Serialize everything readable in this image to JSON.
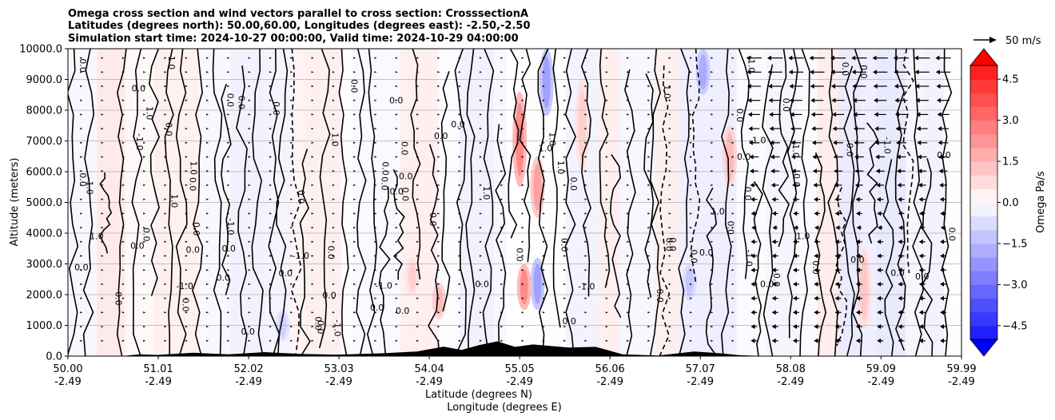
{
  "chart_data": {
    "type": "heatmap",
    "title_lines": [
      "Omega cross section and wind vectors parallel to cross section: CrosssectionA",
      "Latitudes (degrees north): 50.00,60.00, Longitudes (degrees east): -2.50,-2.50",
      "Simulation start time: 2024-10-27 00:00:00, Valid time: 2024-10-29 04:00:00"
    ],
    "ylabel": "Altitude (meters)",
    "xlabel_lines": [
      "Latitude (degrees N)",
      "Longitude (degrees E)"
    ],
    "xlim": [
      50.0,
      59.99
    ],
    "ylim": [
      0,
      10000
    ],
    "yticks": [
      "0.0",
      "1000.0",
      "2000.0",
      "3000.0",
      "4000.0",
      "5000.0",
      "6000.0",
      "7000.0",
      "8000.0",
      "9000.0",
      "10000.0"
    ],
    "xticks": [
      {
        "lat": "50.00",
        "lon": "-2.49"
      },
      {
        "lat": "51.01",
        "lon": "-2.49"
      },
      {
        "lat": "52.02",
        "lon": "-2.49"
      },
      {
        "lat": "53.03",
        "lon": "-2.49"
      },
      {
        "lat": "54.04",
        "lon": "-2.49"
      },
      {
        "lat": "55.05",
        "lon": "-2.49"
      },
      {
        "lat": "56.06",
        "lon": "-2.49"
      },
      {
        "lat": "57.07",
        "lon": "-2.49"
      },
      {
        "lat": "58.08",
        "lon": "-2.49"
      },
      {
        "lat": "59.09",
        "lon": "-2.49"
      },
      {
        "lat": "59.99",
        "lon": "-2.49"
      }
    ],
    "grid": "horizontal",
    "colorbar": {
      "label": "Omega Pa/s",
      "range": [
        -5.0,
        5.0
      ],
      "ticks": [
        "4.5",
        "3.0",
        "1.5",
        "0.0",
        "−1.5",
        "−3.0",
        "−4.5"
      ],
      "colormap": "bwr",
      "low_color": "#0000ff",
      "high_color": "#ff0000"
    },
    "quiver_key": "50 m/s",
    "contour_labels": [
      "0.0",
      "1.0",
      "-1.0"
    ],
    "anomalies": [
      {
        "lat": 55.05,
        "alt_from": 5500,
        "alt_to": 8600,
        "value": 2.5
      },
      {
        "lat": 55.35,
        "alt_from": 7800,
        "alt_to": 10000,
        "value": -2.0
      },
      {
        "lat": 55.25,
        "alt_from": 1500,
        "alt_to": 3200,
        "value": -2.0
      },
      {
        "lat": 55.1,
        "alt_from": 1500,
        "alt_to": 3000,
        "value": 2.5
      },
      {
        "lat": 55.25,
        "alt_from": 4500,
        "alt_to": 6500,
        "value": 2.0
      },
      {
        "lat": 57.1,
        "alt_from": 8500,
        "alt_to": 10000,
        "value": -1.8
      },
      {
        "lat": 57.4,
        "alt_from": 5500,
        "alt_to": 7500,
        "value": 1.5
      },
      {
        "lat": 54.15,
        "alt_from": 1200,
        "alt_to": 2400,
        "value": 1.5
      },
      {
        "lat": 58.9,
        "alt_from": 900,
        "alt_to": 3500,
        "value": 1.2
      },
      {
        "lat": 56.95,
        "alt_from": 1800,
        "alt_to": 3000,
        "value": -1.2
      },
      {
        "lat": 53.85,
        "alt_from": 2000,
        "alt_to": 3200,
        "value": 1.0
      },
      {
        "lat": 52.4,
        "alt_from": 500,
        "alt_to": 1500,
        "value": -1.0
      },
      {
        "lat": 55.75,
        "alt_from": 6000,
        "alt_to": 9000,
        "value": 1.0
      }
    ],
    "wind_zone": {
      "lat_from": 57.6,
      "lat_to": 59.99,
      "direction": "westward"
    }
  }
}
